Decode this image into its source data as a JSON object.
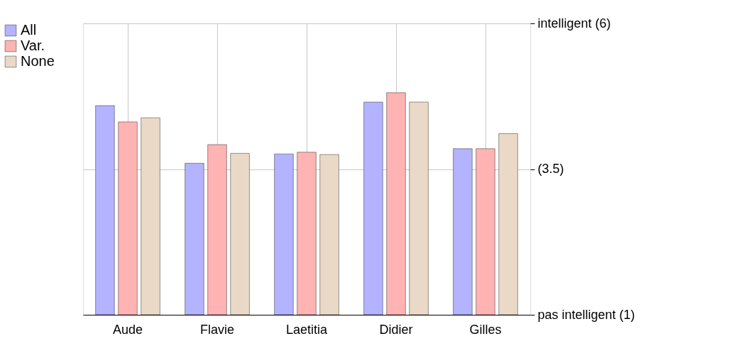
{
  "chart_data": {
    "type": "bar",
    "categories": [
      "Aude",
      "Flavie",
      "Laetitia",
      "Didier",
      "Gilles"
    ],
    "series": [
      {
        "name": "All",
        "color": "#b3b3ff",
        "values": [
          4.59,
          3.6,
          3.76,
          4.65,
          3.85
        ]
      },
      {
        "name": "Var.",
        "color": "#ffb3b3",
        "values": [
          4.31,
          3.92,
          3.79,
          4.81,
          3.85
        ]
      },
      {
        "name": "None",
        "color": "#ead9c6",
        "values": [
          4.38,
          3.77,
          3.75,
          4.65,
          4.11
        ]
      }
    ],
    "ylim": [
      1,
      6
    ],
    "yticks": [
      {
        "value": 1,
        "label": "pas intelligent (1)"
      },
      {
        "value": 3.5,
        "label": "(3.5)"
      },
      {
        "value": 6,
        "label": "intelligent (6)"
      }
    ],
    "grid": true,
    "legend": "top left"
  }
}
